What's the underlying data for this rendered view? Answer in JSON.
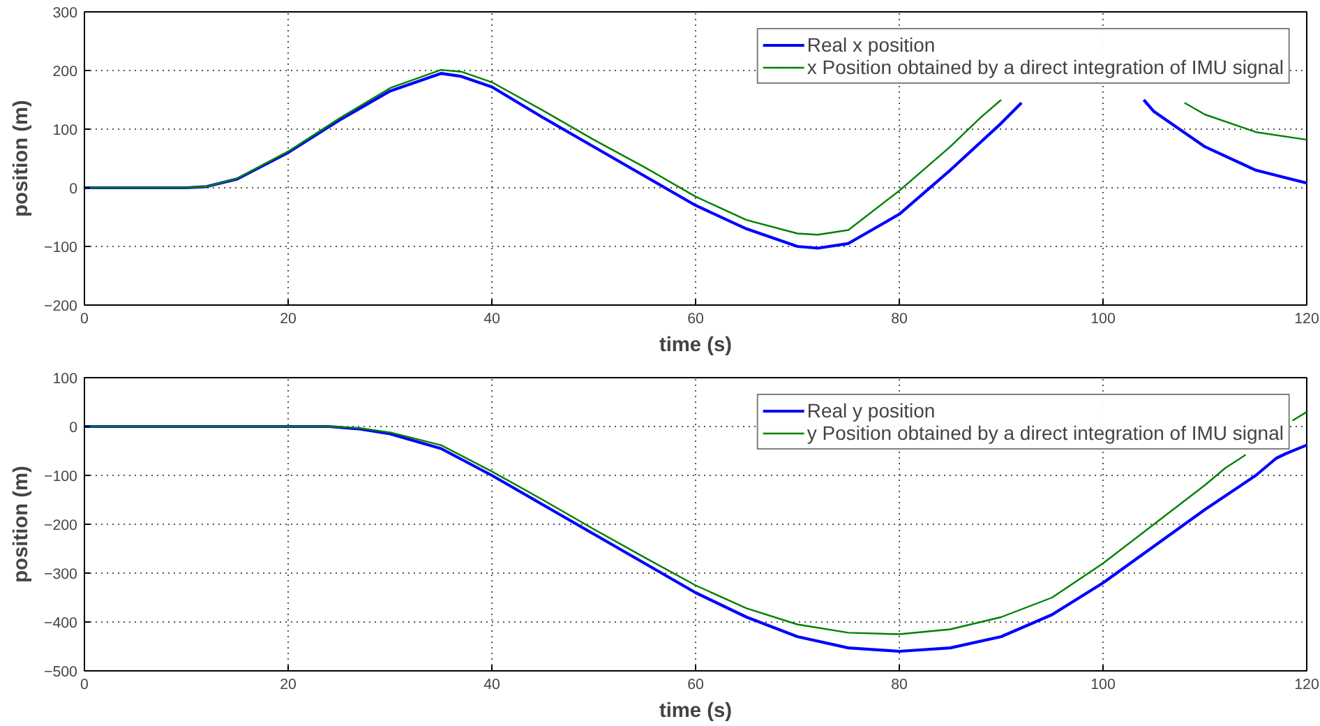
{
  "chart_data": [
    {
      "type": "line",
      "xlabel": "time (s)",
      "ylabel": "position (m)",
      "xlim": [
        0,
        120
      ],
      "ylim": [
        -200,
        300
      ],
      "xticks": [
        0,
        20,
        40,
        60,
        80,
        100,
        120
      ],
      "yticks": [
        -200,
        -100,
        0,
        100,
        200,
        300
      ],
      "grid": true,
      "legend": "top right",
      "series": [
        {
          "name": "Real x position",
          "color": "#0000ff",
          "x": [
            0,
            10,
            12,
            15,
            20,
            25,
            30,
            35,
            37,
            40,
            45,
            50,
            55,
            60,
            65,
            70,
            72,
            75,
            80,
            85,
            90,
            92,
            98,
            104,
            105,
            110,
            115,
            120
          ],
          "values": [
            0,
            0,
            2,
            15,
            60,
            115,
            165,
            195,
            190,
            172,
            120,
            70,
            20,
            -30,
            -70,
            -100,
            -103,
            -95,
            -45,
            30,
            110,
            145,
            null,
            150,
            130,
            70,
            30,
            8
          ]
        },
        {
          "name": "x Position obtained by a direct integration of IMU signal",
          "color": "#008000",
          "x": [
            0,
            10,
            12,
            15,
            20,
            25,
            30,
            35,
            37,
            40,
            45,
            50,
            55,
            60,
            65,
            70,
            72,
            75,
            80,
            85,
            88,
            90,
            98,
            108,
            110,
            115,
            120
          ],
          "values": [
            0,
            0,
            2,
            16,
            62,
            118,
            170,
            201,
            198,
            180,
            132,
            82,
            35,
            -15,
            -55,
            -78,
            -80,
            -72,
            -5,
            70,
            120,
            150,
            null,
            145,
            125,
            95,
            82
          ]
        }
      ]
    },
    {
      "type": "line",
      "xlabel": "time (s)",
      "ylabel": "position (m)",
      "xlim": [
        0,
        120
      ],
      "ylim": [
        -500,
        100
      ],
      "xticks": [
        0,
        20,
        40,
        60,
        80,
        100,
        120
      ],
      "yticks": [
        -500,
        -400,
        -300,
        -200,
        -100,
        0,
        100
      ],
      "grid": true,
      "legend": "top right",
      "series": [
        {
          "name": "Real y position",
          "color": "#0000ff",
          "x": [
            0,
            20,
            24,
            27,
            30,
            35,
            40,
            45,
            50,
            55,
            60,
            65,
            70,
            75,
            80,
            85,
            90,
            95,
            100,
            105,
            110,
            115,
            117,
            118,
            120
          ],
          "values": [
            0,
            0,
            0,
            -5,
            -15,
            -45,
            -100,
            -160,
            -220,
            -280,
            -340,
            -390,
            -430,
            -453,
            -460,
            -453,
            -430,
            -385,
            -320,
            -245,
            -170,
            -100,
            -65,
            -55,
            -38
          ]
        },
        {
          "name": "y Position obtained by a direct integration of IMU signal",
          "color": "#008000",
          "x": [
            0,
            20,
            24,
            27,
            30,
            35,
            40,
            45,
            50,
            55,
            60,
            65,
            70,
            75,
            80,
            85,
            90,
            95,
            100,
            105,
            110,
            112,
            114,
            116,
            118.6,
            120
          ],
          "values": [
            0,
            0,
            0,
            -3,
            -12,
            -38,
            -92,
            -150,
            -210,
            -268,
            -325,
            -372,
            -405,
            -422,
            -425,
            -415,
            -390,
            -350,
            -280,
            -200,
            -120,
            -85,
            -58,
            null,
            12,
            30
          ]
        }
      ]
    }
  ]
}
